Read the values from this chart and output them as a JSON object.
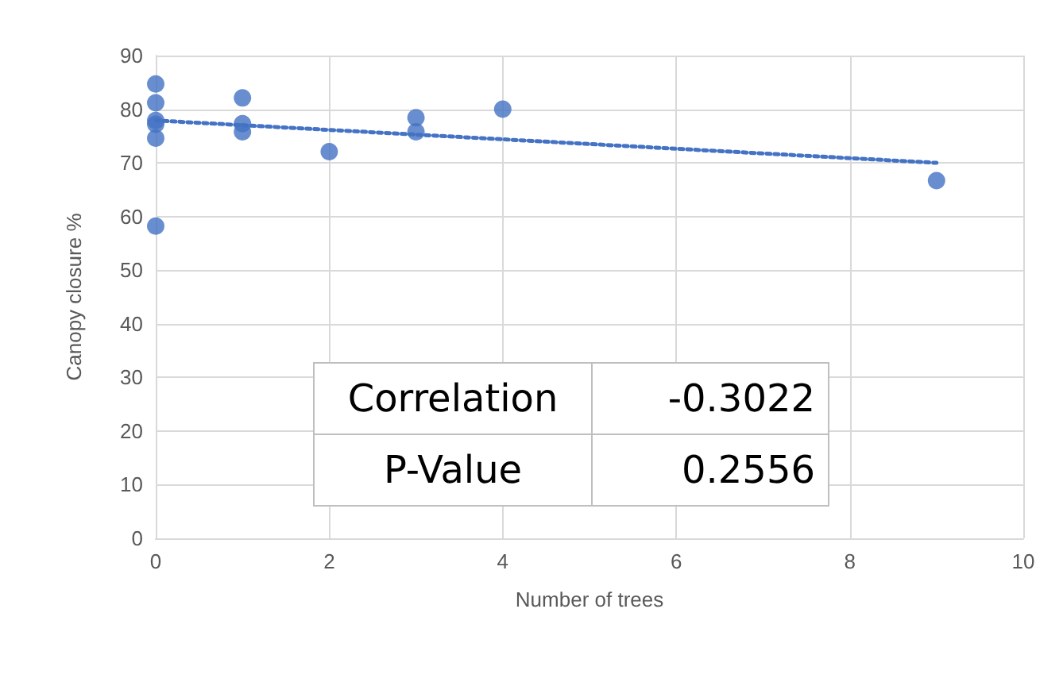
{
  "chart_data": {
    "type": "scatter",
    "xlabel": "Number of trees",
    "ylabel": "Canopy closure %",
    "xlim": [
      0,
      10
    ],
    "xticks": [
      0,
      2,
      4,
      6,
      8,
      10
    ],
    "ylim": [
      0,
      90
    ],
    "yticks": [
      0,
      10,
      20,
      30,
      40,
      50,
      60,
      70,
      80,
      90
    ],
    "grid": true,
    "marker": "circle",
    "series": [
      {
        "color": "#4472c4",
        "x": [
          0,
          0,
          0,
          0,
          0,
          0,
          1,
          1,
          1,
          2,
          3,
          3,
          4,
          9
        ],
        "values": [
          84.7,
          81.2,
          77.9,
          77.2,
          74.6,
          58.2,
          82.1,
          77.3,
          75.8,
          72.1,
          78.4,
          75.8,
          80,
          66.7
        ]
      },
      {
        "type": "line",
        "color": "#4472c4",
        "line_style": "dotted",
        "marker": "none",
        "x": [
          0,
          9
        ],
        "values": [
          77.9,
          70
        ]
      }
    ],
    "annotations": [
      "Correlation",
      "-0.3022",
      "P-Value",
      "0.2556"
    ]
  }
}
